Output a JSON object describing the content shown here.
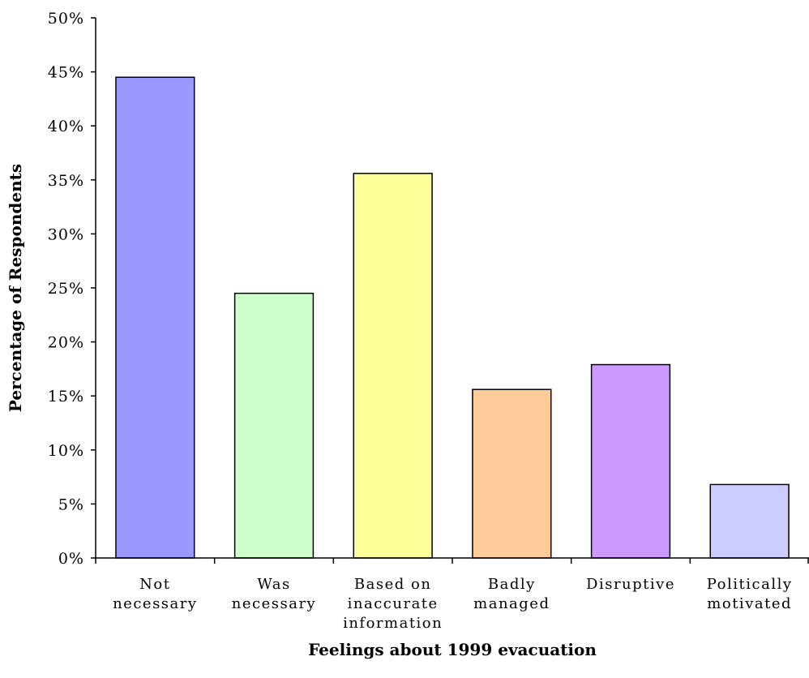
{
  "chart_data": {
    "type": "bar",
    "title": "",
    "xlabel": "Feelings about 1999 evacuation",
    "ylabel": "Percentage of Respondents",
    "ylim": [
      0,
      50
    ],
    "yticks": [
      "0%",
      "5%",
      "10%",
      "15%",
      "20%",
      "25%",
      "30%",
      "35%",
      "40%",
      "45%",
      "50%"
    ],
    "grid": false,
    "categories": [
      [
        "Not",
        "necessary"
      ],
      [
        "Was",
        "necessary"
      ],
      [
        "Based on",
        "inaccurate",
        "information"
      ],
      [
        "Badly",
        "managed"
      ],
      [
        "Disruptive"
      ],
      [
        "Politically",
        "motivated"
      ]
    ],
    "values": [
      44.5,
      24.5,
      35.6,
      15.6,
      17.9,
      6.8
    ],
    "colors": [
      "#9999ff",
      "#ccffcc",
      "#ffff99",
      "#ffcc99",
      "#cc99ff",
      "#ccccff"
    ]
  }
}
